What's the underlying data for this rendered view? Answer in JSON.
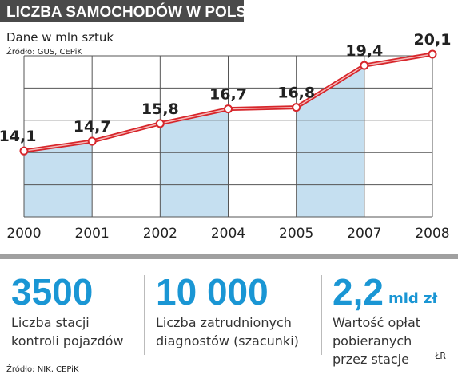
{
  "chart_data": {
    "type": "line",
    "title": "LICZBA SAMOCHODÓW W POLSCE",
    "subtitle": "Dane w mln sztuk",
    "source": "Źródło:  GUS, CEPiK",
    "categories": [
      "2000",
      "2001",
      "2002",
      "2004",
      "2005",
      "2007",
      "2008"
    ],
    "values": [
      14.1,
      14.7,
      15.8,
      16.7,
      16.8,
      19.4,
      20.1
    ],
    "value_labels": [
      "14,1",
      "14,7",
      "15,8",
      "16,7",
      "16,8",
      "19,4",
      "20,1"
    ],
    "color": "#d7262b",
    "fill_color": "#c5dff0",
    "ylim": [
      10,
      20
    ],
    "yticks": [
      10,
      12,
      14,
      16,
      18,
      20
    ],
    "grid": true
  },
  "stats": [
    {
      "value": "3500",
      "label": [
        "Liczba stacji",
        "kontroli pojazdów"
      ]
    },
    {
      "value": "10 000",
      "label": [
        "Liczba zatrudnionych",
        "diagnostów (szacunki)"
      ]
    },
    {
      "value": "2,2",
      "unit": "mld zł",
      "label": [
        "Wartość opłat",
        "pobieranych",
        "przez stacje"
      ]
    }
  ],
  "footer": {
    "source": "Źródło: NIK, CEPiK",
    "author": "ŁR"
  }
}
